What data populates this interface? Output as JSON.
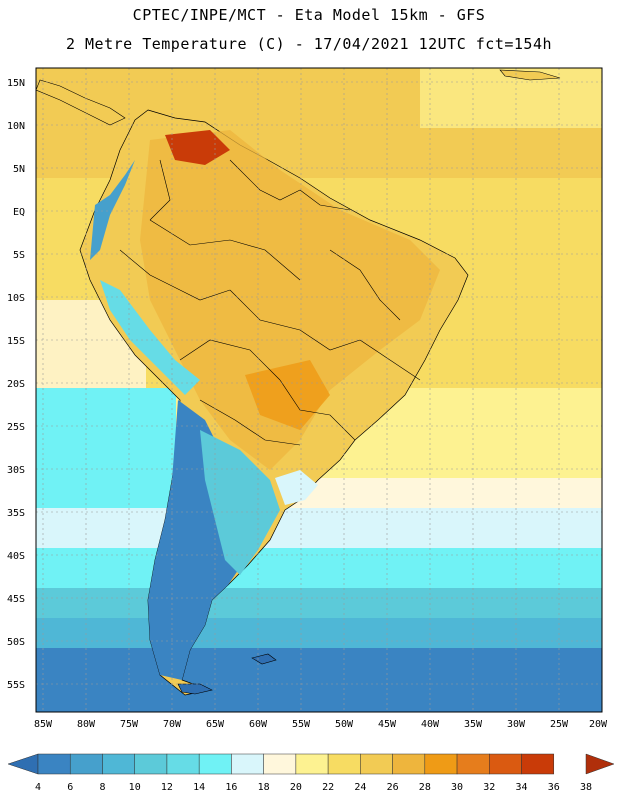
{
  "header": {
    "line1": "CPTEC/INPE/MCT -  Eta Model 15km - GFS",
    "line2": "2 Metre Temperature (C) - 17/04/2021 12UTC fct=154h"
  },
  "map": {
    "region": "South America",
    "lat_labels": [
      "15N",
      "10N",
      "5N",
      "EQ",
      "5S",
      "10S",
      "15S",
      "20S",
      "25S",
      "30S",
      "35S",
      "40S",
      "45S",
      "50S",
      "55S"
    ],
    "lon_labels": [
      "85W",
      "80W",
      "75W",
      "70W",
      "65W",
      "60W",
      "55W",
      "50W",
      "45W",
      "40W",
      "35W",
      "30W",
      "25W",
      "20W"
    ]
  },
  "colorbar": {
    "labels": [
      "4",
      "6",
      "8",
      "10",
      "12",
      "14",
      "16",
      "18",
      "20",
      "22",
      "24",
      "26",
      "28",
      "30",
      "32",
      "34",
      "36",
      "38"
    ],
    "colors": [
      "#2f6fb2",
      "#3a84c2",
      "#46a0cc",
      "#4fb7d6",
      "#5ccad9",
      "#66dce6",
      "#70f2f5",
      "#d9f6fb",
      "#fff7dc",
      "#fdf291",
      "#f7dc62",
      "#f2cb54",
      "#eeb53d",
      "#ef9b16",
      "#e67d1c",
      "#da5a11",
      "#c93b08",
      "#b02f0b"
    ]
  }
}
